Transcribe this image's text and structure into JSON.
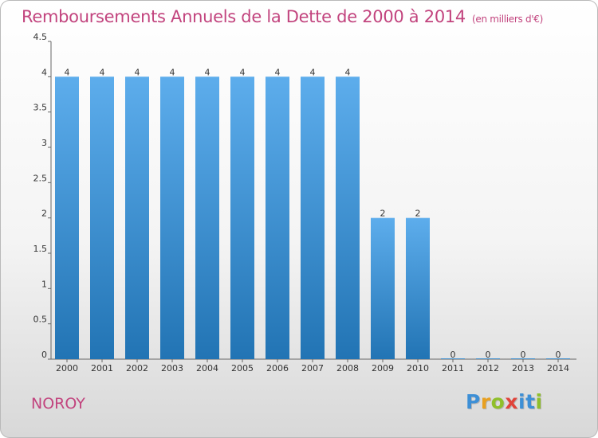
{
  "header": {
    "title": "Remboursements Annuels de la Dette de 2000 à 2014",
    "unit": "(en milliers d'€)"
  },
  "footer": {
    "place": "NOROY",
    "brand": "Proxiti"
  },
  "colors": {
    "title": "#c2447e",
    "bar_top": "#5dadec",
    "bar_bottom": "#2274b4",
    "brand_letters": [
      "#3d8fd6",
      "#e8a020",
      "#8fbf2a",
      "#e0433a",
      "#3d8fd6",
      "#3d8fd6",
      "#8fbf2a"
    ]
  },
  "chart_data": {
    "type": "bar",
    "categories": [
      "2000",
      "2001",
      "2002",
      "2003",
      "2004",
      "2005",
      "2006",
      "2007",
      "2008",
      "2009",
      "2010",
      "2011",
      "2012",
      "2013",
      "2014"
    ],
    "values": [
      4,
      4,
      4,
      4,
      4,
      4,
      4,
      4,
      4,
      2,
      2,
      0,
      0,
      0,
      0
    ],
    "data_labels": [
      "4",
      "4",
      "4",
      "4",
      "4",
      "4",
      "4",
      "4",
      "4",
      "2",
      "2",
      "0",
      "0",
      "0",
      "0"
    ],
    "yticks": [
      0,
      0.5,
      1,
      1.5,
      2,
      2.5,
      3,
      3.5,
      4,
      4.5
    ],
    "ytick_labels": [
      "0",
      "0.5",
      "1",
      "1.5",
      "2",
      "2.5",
      "3",
      "3.5",
      "4",
      "4.5"
    ],
    "ylim": [
      0,
      4.5
    ],
    "grid": false,
    "xlabel": "",
    "ylabel": ""
  }
}
